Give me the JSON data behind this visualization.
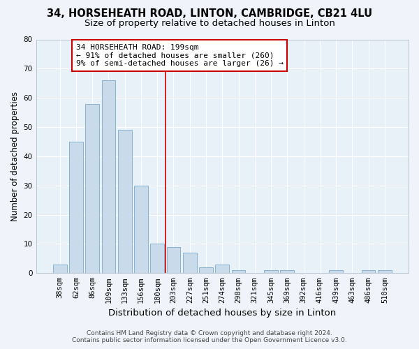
{
  "title_line1": "34, HORSEHEATH ROAD, LINTON, CAMBRIDGE, CB21 4LU",
  "title_line2": "Size of property relative to detached houses in Linton",
  "xlabel": "Distribution of detached houses by size in Linton",
  "ylabel": "Number of detached properties",
  "bar_color": "#c9daea",
  "bar_edge_color": "#7aaac8",
  "categories": [
    "38sqm",
    "62sqm",
    "86sqm",
    "109sqm",
    "133sqm",
    "156sqm",
    "180sqm",
    "203sqm",
    "227sqm",
    "251sqm",
    "274sqm",
    "298sqm",
    "321sqm",
    "345sqm",
    "369sqm",
    "392sqm",
    "416sqm",
    "439sqm",
    "463sqm",
    "486sqm",
    "510sqm"
  ],
  "values": [
    3,
    45,
    58,
    66,
    49,
    30,
    10,
    9,
    7,
    2,
    3,
    1,
    0,
    1,
    1,
    0,
    0,
    1,
    0,
    1,
    1
  ],
  "ylim": [
    0,
    80
  ],
  "yticks": [
    0,
    10,
    20,
    30,
    40,
    50,
    60,
    70,
    80
  ],
  "vline_x": 6.5,
  "vline_color": "#cc0000",
  "annotation_title": "34 HORSEHEATH ROAD: 199sqm",
  "annotation_line1": "← 91% of detached houses are smaller (260)",
  "annotation_line2": "9% of semi-detached houses are larger (26) →",
  "footer_line1": "Contains HM Land Registry data © Crown copyright and database right 2024.",
  "footer_line2": "Contains public sector information licensed under the Open Government Licence v3.0.",
  "bg_color": "#f0f4fa",
  "plot_bg_color": "#e8f0f8",
  "grid_color": "#ffffff",
  "annotation_box_color": "#ffffff",
  "annotation_box_edge": "#cc0000",
  "title_fontsize": 10.5,
  "subtitle_fontsize": 9.5,
  "xlabel_fontsize": 9,
  "ylabel_fontsize": 8.5,
  "tick_fontsize": 7.5,
  "annotation_fontsize": 8,
  "footer_fontsize": 6.5
}
